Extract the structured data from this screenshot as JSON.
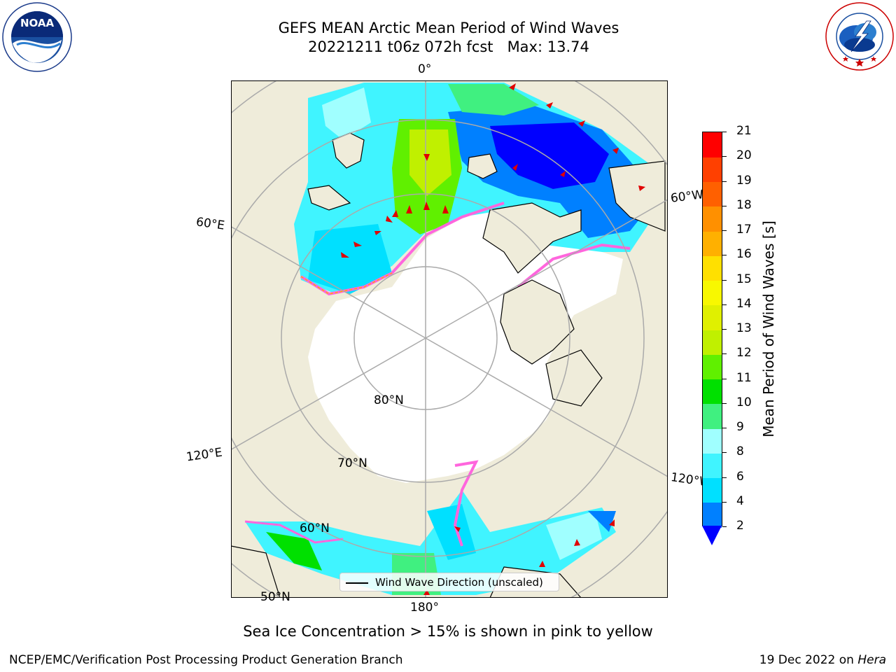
{
  "header": {
    "title_line1": "GEFS MEAN Arctic Mean Period of Wind Waves",
    "title_line2": "20221211 t06z 072h fcst   Max: 13.74"
  },
  "logos": {
    "left": "NOAA",
    "left_ring_text": "NATIONAL OCEANIC AND ATMOSPHERIC ADMINISTRATION · U.S. DEPARTMENT OF COMMERCE",
    "right_ring_text": "NATIONAL WEATHER SERVICE"
  },
  "map": {
    "projection": "north-polar-stereographic",
    "longitude_labels": [
      "0°",
      "60°W",
      "120°W",
      "180°",
      "120°E",
      "60°E"
    ],
    "latitude_labels": [
      "80°N",
      "70°N",
      "60°N",
      "50°N"
    ],
    "colors": {
      "land": "#efecda",
      "ice": "#ffffff",
      "grid": "#aaaaaa",
      "coast": "#000000",
      "wave_arrow": "#e00000"
    }
  },
  "colorbar": {
    "title": "Mean Period of Wind Waves [s]",
    "ticks": [
      "2",
      "4",
      "6",
      "8",
      "9",
      "10",
      "11",
      "12",
      "13",
      "14",
      "15",
      "16",
      "17",
      "18",
      "19",
      "20",
      "21"
    ],
    "levels": [
      {
        "from": 2,
        "to": 4,
        "color": "#0080ff"
      },
      {
        "from": 4,
        "to": 6,
        "color": "#00e0ff"
      },
      {
        "from": 6,
        "to": 8,
        "color": "#40f4ff"
      },
      {
        "from": 8,
        "to": 9,
        "color": "#a0ffff"
      },
      {
        "from": 9,
        "to": 10,
        "color": "#40f080"
      },
      {
        "from": 10,
        "to": 11,
        "color": "#00e000"
      },
      {
        "from": 11,
        "to": 12,
        "color": "#60f000"
      },
      {
        "from": 12,
        "to": 13,
        "color": "#c0f000"
      },
      {
        "from": 13,
        "to": 14,
        "color": "#e0f000"
      },
      {
        "from": 14,
        "to": 15,
        "color": "#f8f800"
      },
      {
        "from": 15,
        "to": 16,
        "color": "#ffe000"
      },
      {
        "from": 16,
        "to": 17,
        "color": "#ffb000"
      },
      {
        "from": 17,
        "to": 18,
        "color": "#ff9000"
      },
      {
        "from": 18,
        "to": 19,
        "color": "#ff6000"
      },
      {
        "from": 19,
        "to": 20,
        "color": "#ff4000"
      },
      {
        "from": 20,
        "to": 21,
        "color": "#ff0000"
      }
    ],
    "extend_color": "#0000ff"
  },
  "legend": {
    "label": "Wind Wave Direction (unscaled)"
  },
  "caption": "Sea Ice Concentration > 15% is shown in pink to yellow",
  "footer": {
    "left": "NCEP/EMC/Verification Post Processing Product Generation Branch",
    "date": "19 Dec 2022 on ",
    "machine": "Hera"
  }
}
